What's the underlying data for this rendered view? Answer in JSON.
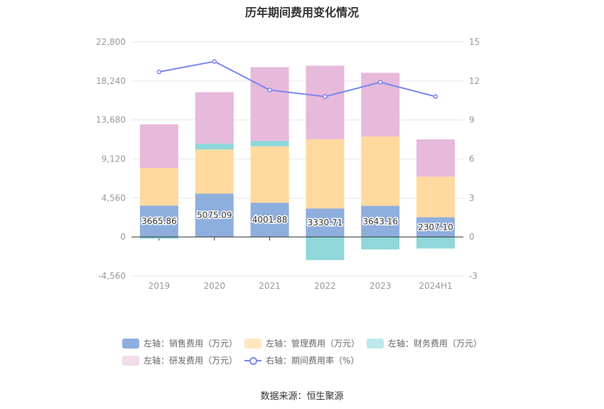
{
  "title": "历年期间费用变化情况",
  "source": "数据来源：恒生聚源",
  "colors": {
    "sales": "#8eaedd",
    "mgmt": "#ffd99e",
    "finance": "#8fd7d9",
    "rnd": "#e7b9da",
    "rate": "#7a86ee",
    "axis_text": "#999999",
    "grid": "#e6e6e6"
  },
  "legend": [
    {
      "key": "sales",
      "label": "左轴：销售费用（万元）",
      "kind": "box"
    },
    {
      "key": "mgmt",
      "label": "左轴：管理费用（万元）",
      "kind": "box"
    },
    {
      "key": "finance",
      "label": "左轴：财务费用（万元）",
      "kind": "box"
    },
    {
      "key": "rnd",
      "label": "左轴：研发费用（万元）",
      "kind": "box"
    },
    {
      "key": "rate",
      "label": "右轴：期间费用率（%）",
      "kind": "line"
    }
  ],
  "chart_data": {
    "type": "bar",
    "stacked": true,
    "categories": [
      "2019",
      "2020",
      "2021",
      "2022",
      "2023",
      "2024H1"
    ],
    "left_axis": {
      "ticks": [
        "22,800",
        "18,240",
        "13,680",
        "9,120",
        "4,560",
        "0",
        "-4,560"
      ],
      "ylim": [
        -4560,
        22800
      ]
    },
    "right_axis": {
      "ticks": [
        "15",
        "12",
        "9",
        "6",
        "3",
        "0",
        "-3"
      ],
      "ylim": [
        -3,
        15
      ]
    },
    "series": [
      {
        "key": "sales",
        "name": "销售费用（万元）",
        "axis": "left",
        "values": [
          3665.86,
          5075.09,
          4001.88,
          3330.71,
          3643.16,
          2307.1
        ],
        "labels": [
          "3665.86",
          "5075.09",
          "4001.88",
          "3330.71",
          "3643.16",
          "2307.10"
        ]
      },
      {
        "key": "mgmt",
        "name": "管理费用（万元）",
        "axis": "left",
        "values": [
          4400,
          5150,
          6600,
          8090,
          8100,
          4750
        ]
      },
      {
        "key": "finance",
        "name": "财务费用（万元）",
        "axis": "left",
        "values": [
          -200,
          700,
          650,
          -2700,
          -1450,
          -1350
        ]
      },
      {
        "key": "rnd",
        "name": "研发费用（万元）",
        "axis": "left",
        "values": [
          5100,
          6000,
          8600,
          8600,
          7450,
          4350
        ]
      },
      {
        "key": "rate",
        "name": "期间费用率（%）",
        "axis": "right",
        "type": "line",
        "values": [
          12.7,
          13.5,
          11.3,
          10.8,
          11.9,
          10.8
        ]
      }
    ]
  }
}
